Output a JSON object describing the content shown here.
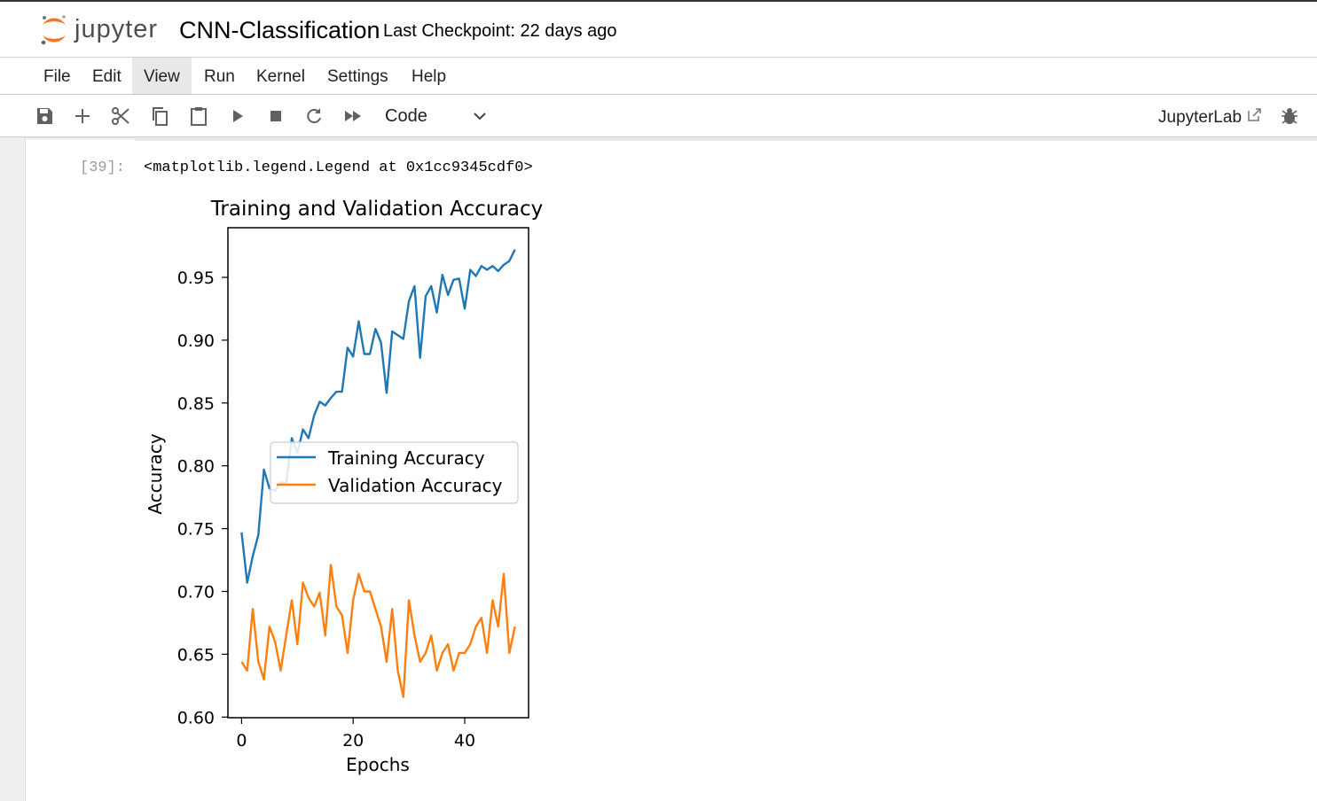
{
  "header": {
    "logo_text": "jupyter",
    "notebook_title": "CNN-Classification",
    "checkpoint": "Last Checkpoint: 22 days ago"
  },
  "menu": {
    "items": [
      {
        "label": "File"
      },
      {
        "label": "Edit"
      },
      {
        "label": "View",
        "active": true
      },
      {
        "label": "Run"
      },
      {
        "label": "Kernel"
      },
      {
        "label": "Settings"
      },
      {
        "label": "Help"
      }
    ]
  },
  "toolbar": {
    "buttons": [
      "save-icon",
      "add-cell-icon",
      "cut-icon",
      "copy-icon",
      "paste-icon",
      "run-icon",
      "stop-icon",
      "restart-icon",
      "run-all-icon"
    ],
    "cell_type": "Code",
    "jupyterlab_label": "JupyterLab"
  },
  "cell": {
    "prompt": "[39]:",
    "output_text": "<matplotlib.legend.Legend at 0x1cc9345cdf0>"
  },
  "colors": {
    "training": "#1f77b4",
    "validation": "#ff7f0e",
    "jupyter_orange": "#f37726"
  },
  "chart_data": {
    "type": "line",
    "title": "Training and Validation Accuracy",
    "xlabel": "Epochs",
    "ylabel": "Accuracy",
    "xlim": [
      -2.45,
      51.45
    ],
    "ylim": [
      0.5995,
      0.9895
    ],
    "xticks": [
      0,
      20,
      40
    ],
    "yticks": [
      0.6,
      0.65,
      0.7,
      0.75,
      0.8,
      0.85,
      0.9,
      0.95
    ],
    "ytick_labels": [
      "0.60",
      "0.65",
      "0.70",
      "0.75",
      "0.80",
      "0.85",
      "0.90",
      "0.95"
    ],
    "legend_position": "center-right",
    "x": [
      0,
      1,
      2,
      3,
      4,
      5,
      6,
      7,
      8,
      9,
      10,
      11,
      12,
      13,
      14,
      15,
      16,
      17,
      18,
      19,
      20,
      21,
      22,
      23,
      24,
      25,
      26,
      27,
      28,
      29,
      30,
      31,
      32,
      33,
      34,
      35,
      36,
      37,
      38,
      39,
      40,
      41,
      42,
      43,
      44,
      45,
      46,
      47,
      48,
      49
    ],
    "series": [
      {
        "name": "Training Accuracy",
        "color": "#1f77b4",
        "values": [
          0.747,
          0.707,
          0.728,
          0.745,
          0.797,
          0.782,
          0.78,
          0.787,
          0.786,
          0.822,
          0.81,
          0.829,
          0.822,
          0.84,
          0.851,
          0.848,
          0.854,
          0.859,
          0.859,
          0.894,
          0.887,
          0.915,
          0.889,
          0.889,
          0.909,
          0.898,
          0.858,
          0.907,
          0.904,
          0.901,
          0.931,
          0.943,
          0.886,
          0.935,
          0.943,
          0.922,
          0.952,
          0.936,
          0.948,
          0.949,
          0.925,
          0.956,
          0.951,
          0.959,
          0.956,
          0.959,
          0.955,
          0.96,
          0.963,
          0.972
        ]
      },
      {
        "name": "Validation Accuracy",
        "color": "#ff7f0e",
        "values": [
          0.644,
          0.637,
          0.686,
          0.644,
          0.63,
          0.672,
          0.66,
          0.637,
          0.665,
          0.693,
          0.658,
          0.707,
          0.695,
          0.688,
          0.699,
          0.665,
          0.721,
          0.688,
          0.681,
          0.651,
          0.693,
          0.714,
          0.7,
          0.7,
          0.686,
          0.672,
          0.644,
          0.686,
          0.637,
          0.616,
          0.693,
          0.665,
          0.644,
          0.651,
          0.665,
          0.637,
          0.651,
          0.658,
          0.637,
          0.651,
          0.651,
          0.658,
          0.672,
          0.679,
          0.651,
          0.693,
          0.672,
          0.714,
          0.651,
          0.672
        ]
      }
    ]
  }
}
